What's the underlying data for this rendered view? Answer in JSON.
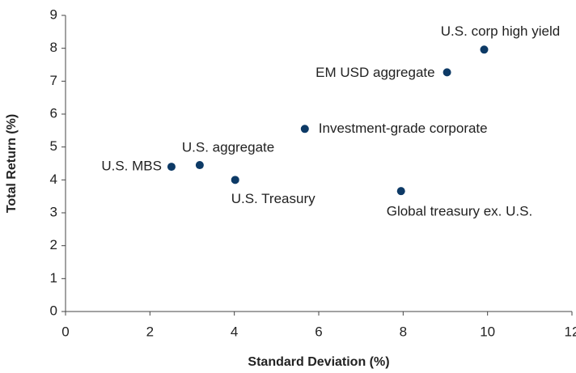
{
  "chart_data": {
    "type": "scatter",
    "x_label": "Standard Deviation (%)",
    "y_label": "Total Return (%)",
    "color": "#0d3a66",
    "points": [
      {
        "label": "U.S. MBS",
        "x": 2.51,
        "y": 4.4
      },
      {
        "label": "U.S. aggregate",
        "x": 3.18,
        "y": 4.45
      },
      {
        "label": "U.S. Treasury",
        "x": 4.02,
        "y": 4.0
      },
      {
        "label": "Investment-grade corporate",
        "x": 5.67,
        "y": 5.55
      },
      {
        "label": "Global treasury ex. U.S.",
        "x": 7.95,
        "y": 3.66
      },
      {
        "label": "EM USD aggregate",
        "x": 9.04,
        "y": 7.27
      },
      {
        "label": "U.S. corp high yield",
        "x": 9.92,
        "y": 7.96
      }
    ],
    "xlim": [
      0,
      12
    ],
    "xticks": [
      0,
      2,
      4,
      6,
      8,
      10,
      12
    ],
    "ylim": [
      0,
      9
    ],
    "yticks": [
      0,
      1,
      2,
      3,
      4,
      5,
      6,
      7,
      8,
      9
    ],
    "grid": false
  }
}
